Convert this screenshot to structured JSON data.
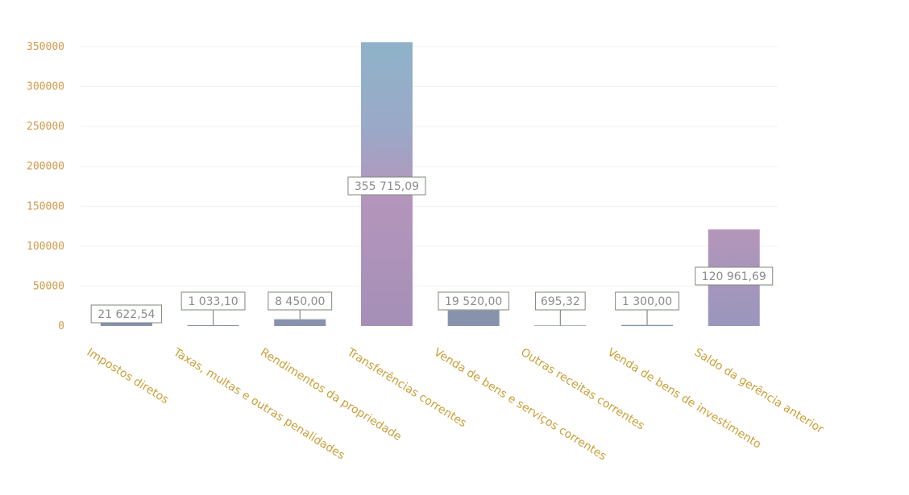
{
  "chart_data": {
    "type": "bar",
    "categories": [
      "Impostos diretos",
      "Taxas, multas e outras penalidades",
      "Rendimentos da propriedade",
      "Transferências correntes",
      "Venda de bens e serviços correntes",
      "Outras receitas correntes",
      "Venda de bens de investimento",
      "Saldo da gerência anterior"
    ],
    "values": [
      21622.54,
      1033.1,
      8450.0,
      355715.09,
      19520.0,
      695.32,
      1300.0,
      120961.69
    ],
    "data_labels": [
      "21 622,54",
      "1 033,10",
      "8 450,00",
      "355 715,09",
      "19 520,00",
      "695,32",
      "1 300,00",
      "120 961,69"
    ],
    "ylim": [
      0,
      350000
    ],
    "yticks": [
      0,
      50000,
      100000,
      150000,
      200000,
      250000,
      300000,
      350000
    ],
    "ytick_labels": [
      "0",
      "50000",
      "100000",
      "150000",
      "200000",
      "250000",
      "300000",
      "350000"
    ],
    "grid": true,
    "legend": "none",
    "title": "",
    "xlabel": "",
    "ylabel": "",
    "colors": {
      "bar_top": "#8fb3c9",
      "bar_bottom": "#b68fb4",
      "small_bar": "#8793ad",
      "tick_text": "#d39a4a",
      "category_text": "#c9a03a",
      "grid": "#f1f1ec"
    }
  }
}
